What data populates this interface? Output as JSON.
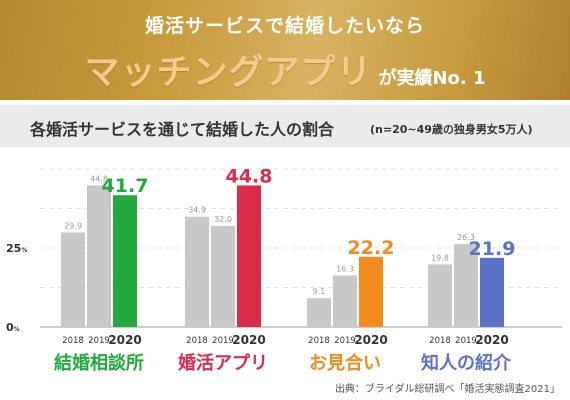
{
  "banner": {
    "line1": "婚活サービスで結婚したいなら",
    "highlight": "マッチングアプリ",
    "suffix": "が実績No. 1"
  },
  "subtitle": {
    "main": "各婚活サービスを通じて結婚した人の割合",
    "note": "(n=20~49歳の独身男女5万人)"
  },
  "source": "出典：ブライダル総研調べ「婚活実態調査2021」",
  "chart_data": {
    "type": "bar",
    "ylim": [
      0,
      50
    ],
    "yticks": [
      {
        "value": 0,
        "label": "0%"
      },
      {
        "value": 25,
        "label": "25%"
      }
    ],
    "years": [
      "2018",
      "2019",
      "2020"
    ],
    "groups": [
      {
        "name": "結婚相談所",
        "color": "#22ab3c",
        "values": [
          29.9,
          44.8,
          41.7
        ],
        "labels": [
          "29.9",
          "44.8",
          "41.7"
        ]
      },
      {
        "name": "婚活アプリ",
        "color": "#dc2b4a",
        "values": [
          34.9,
          32.0,
          44.8
        ],
        "labels": [
          "34.9",
          "32.0",
          "44.8"
        ]
      },
      {
        "name": "お見合い",
        "color": "#f28a1e",
        "values": [
          9.1,
          16.3,
          22.2
        ],
        "labels": [
          "9.1",
          "16.3",
          "22.2"
        ]
      },
      {
        "name": "知人の紹介",
        "color": "#5a73c6",
        "values": [
          19.8,
          26.3,
          21.9
        ],
        "labels": [
          "19.8",
          "26.3",
          "21.9"
        ]
      }
    ],
    "past_color": "#c8c8c8",
    "grid": true
  }
}
